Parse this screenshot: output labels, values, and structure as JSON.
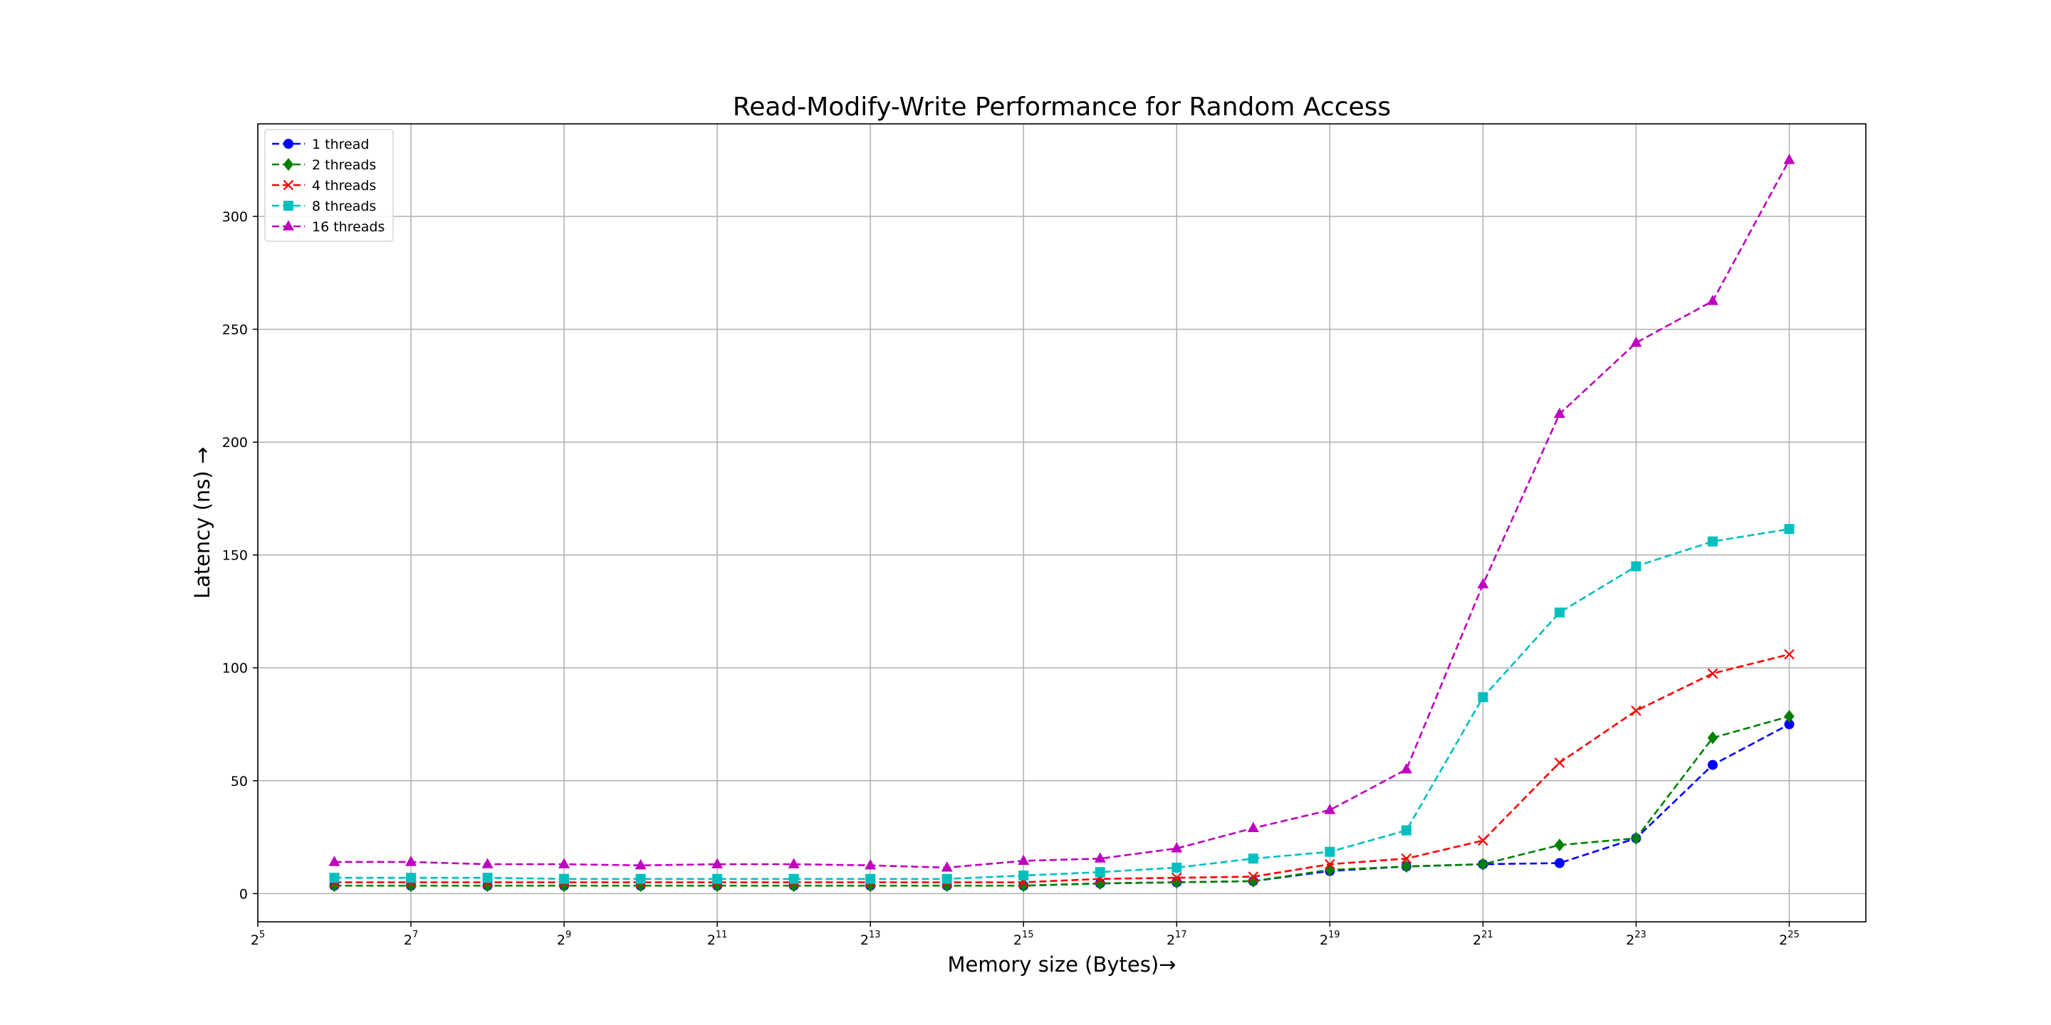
{
  "chart_data": {
    "type": "line",
    "title": "Read-Modify-Write Performance for Random Access",
    "xlabel": "Memory size (Bytes)→",
    "ylabel": "Latency (ns) →",
    "x_scale": "log2",
    "xlim": [
      32,
      67108864
    ],
    "ylim": [
      -12.5,
      341
    ],
    "x_tick_bases": [
      "2",
      "2",
      "2",
      "2",
      "2",
      "2",
      "2",
      "2",
      "2",
      "2",
      "2"
    ],
    "x_tick_exponents": [
      "5",
      "7",
      "9",
      "11",
      "13",
      "15",
      "17",
      "19",
      "21",
      "23",
      "25"
    ],
    "y_ticks": [
      "0",
      "50",
      "100",
      "150",
      "200",
      "250",
      "300"
    ],
    "grid": true,
    "legend_position": "top-left",
    "x": [
      64,
      128,
      256,
      512,
      1024,
      2048,
      4096,
      8192,
      16384,
      32768,
      65536,
      131072,
      262144,
      524288,
      1048576,
      2097152,
      4194304,
      8388608,
      16777216,
      33554432
    ],
    "series": [
      {
        "name": "1 thread",
        "color": "#0000ff",
        "marker": "circle",
        "values": [
          3.5,
          3.5,
          3.5,
          3.5,
          3.5,
          3.5,
          3.5,
          3.5,
          3.5,
          3.5,
          4.5,
          5.0,
          5.5,
          10.0,
          12.0,
          13.0,
          13.5,
          24.5,
          57.0,
          75.0
        ]
      },
      {
        "name": "2 threads",
        "color": "#008000",
        "marker": "diamond",
        "values": [
          3.5,
          3.5,
          3.5,
          3.5,
          3.5,
          3.5,
          3.5,
          3.5,
          3.5,
          3.5,
          4.5,
          5.0,
          5.5,
          10.5,
          12.0,
          13.0,
          21.5,
          24.5,
          69.0,
          78.5
        ]
      },
      {
        "name": "4 threads",
        "color": "#ff0000",
        "marker": "x",
        "values": [
          5.0,
          5.0,
          5.0,
          5.0,
          5.0,
          5.0,
          5.0,
          5.0,
          5.0,
          5.0,
          6.5,
          7.0,
          7.5,
          13.0,
          15.5,
          23.5,
          58.0,
          81.0,
          97.5,
          106.0
        ]
      },
      {
        "name": "8 threads",
        "color": "#00bfbf",
        "marker": "square",
        "values": [
          7.0,
          7.0,
          7.0,
          6.5,
          6.5,
          6.5,
          6.5,
          6.5,
          6.5,
          8.0,
          9.5,
          11.5,
          15.5,
          18.5,
          28.0,
          87.0,
          124.5,
          145.0,
          156.0,
          161.5
        ]
      },
      {
        "name": "16 threads",
        "color": "#bf00bf",
        "marker": "triangle",
        "values": [
          14.0,
          14.0,
          13.0,
          13.0,
          12.5,
          13.0,
          13.0,
          12.5,
          11.5,
          14.5,
          15.5,
          20.0,
          29.0,
          37.0,
          55.0,
          137.0,
          212.5,
          244.0,
          262.5,
          325.0
        ]
      }
    ]
  }
}
